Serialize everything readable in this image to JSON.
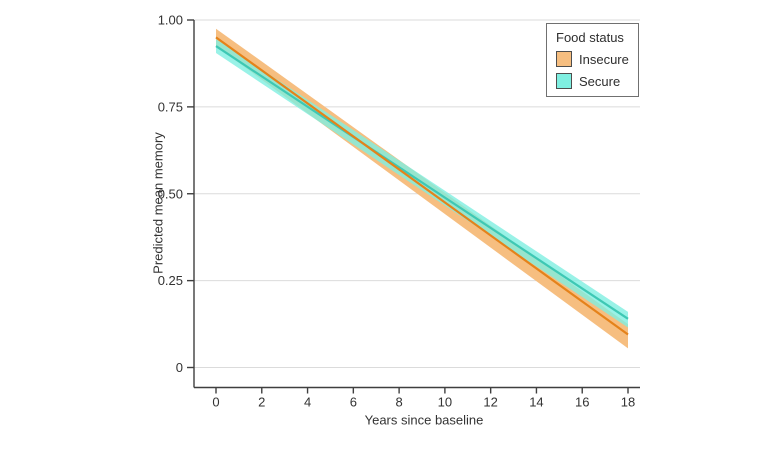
{
  "chart_data": {
    "type": "line",
    "title": "",
    "xlabel": "Years since baseline",
    "ylabel": "Predicted mean memory",
    "xlim": [
      0,
      18
    ],
    "ylim": [
      0,
      1.0
    ],
    "x_ticks": [
      0,
      2,
      4,
      6,
      8,
      10,
      12,
      14,
      16,
      18
    ],
    "y_ticks": [
      {
        "label": "1.00",
        "value": 1.0
      },
      {
        "label": "0.75",
        "value": 0.75
      },
      {
        "label": "0.50",
        "value": 0.5
      },
      {
        "label": "0.25",
        "value": 0.25
      },
      {
        "label": "0",
        "value": 0.0
      }
    ],
    "grid": "horizontal-only",
    "legend": {
      "title": "Food status",
      "position": "top-right"
    },
    "series": [
      {
        "name": "Insecure",
        "x": [
          0,
          18
        ],
        "y": [
          0.95,
          0.095
        ],
        "ci_upper": [
          0.975,
          0.125
        ],
        "ci_lower": [
          0.925,
          0.055
        ],
        "line_color": "#E5821A",
        "band_color": "#F6BE80",
        "band_opacity": 1
      },
      {
        "name": "Secure",
        "x": [
          0,
          18
        ],
        "y": [
          0.925,
          0.14
        ],
        "ci_upper": [
          0.945,
          0.16
        ],
        "ci_lower": [
          0.905,
          0.115
        ],
        "line_color": "#3EC8B4",
        "band_color": "#7FEFE1",
        "band_opacity": 0.8
      }
    ]
  },
  "colors": {
    "background": "#ffffff",
    "grid": "#DBDBDB",
    "axis": "#3F3F3F",
    "tick_text": "#333333",
    "legend_border": "#707070"
  }
}
